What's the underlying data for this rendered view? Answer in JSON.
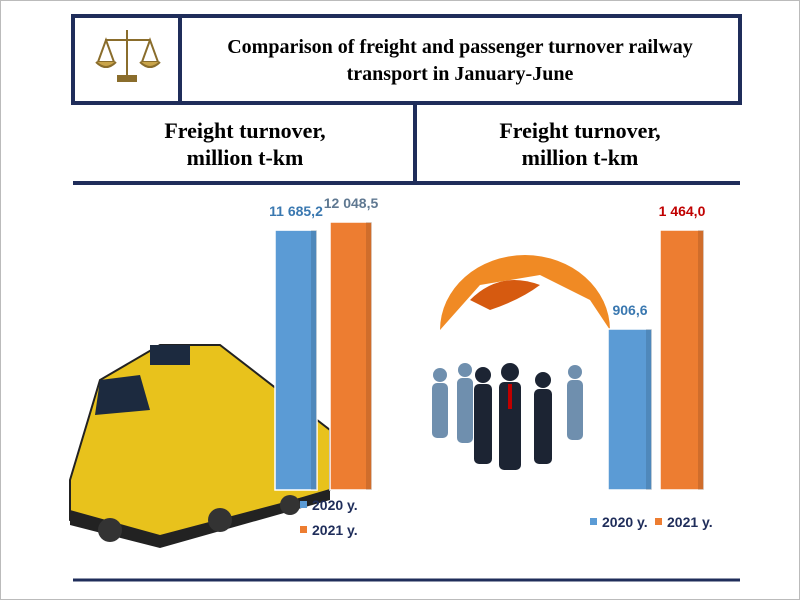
{
  "title": "Comparison of freight and passenger turnover railway transport in January-June",
  "chart_data": [
    {
      "type": "bar",
      "title": "Freight turnover, million t-km",
      "categories": [
        null
      ],
      "series": [
        {
          "name": "2020 y.",
          "color": "#5b9bd5",
          "values": [
            11685.2
          ],
          "value_labels": [
            "11 685,2"
          ],
          "label_color": "#3a78b0"
        },
        {
          "name": "2021 y.",
          "color": "#ed7d31",
          "values": [
            12048.5
          ],
          "value_labels": [
            "12 048,5"
          ],
          "label_color": "#5f7891"
        }
      ],
      "legend": "vertical"
    },
    {
      "type": "bar",
      "title": "Freight turnover, million t-km",
      "categories": [
        null
      ],
      "series": [
        {
          "name": "2020 y.",
          "color": "#5b9bd5",
          "values": [
            906.6
          ],
          "value_labels": [
            "906,6"
          ],
          "label_color": "#3a78b0"
        },
        {
          "name": "2021 y.",
          "color": "#ed7d31",
          "values": [
            1464.0
          ],
          "value_labels": [
            "1 464,0"
          ],
          "label_color": "#c00000"
        }
      ],
      "legend": "horizontal"
    }
  ]
}
